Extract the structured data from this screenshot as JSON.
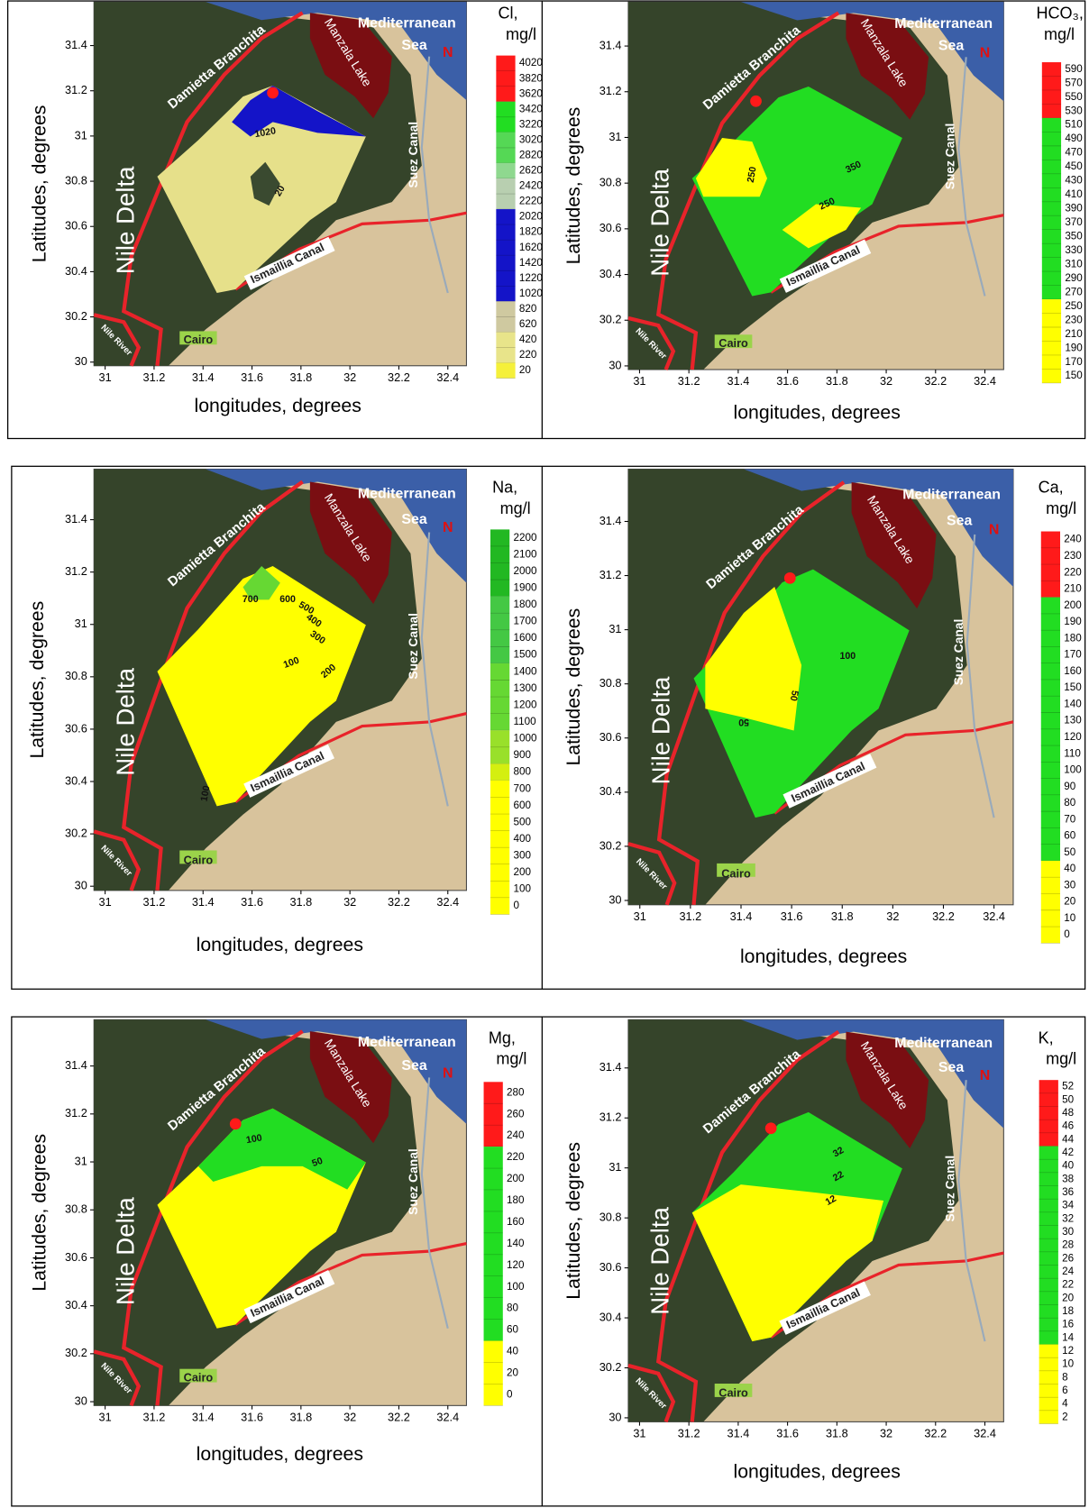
{
  "panels": [
    {
      "title": [
        "Cl,",
        "mg/l"
      ],
      "x_label": "longitudes, degrees",
      "y_label": "Latitudes, degrees",
      "xticks": [
        "31",
        "31.2",
        "31.4",
        "31.6",
        "31.8",
        "32",
        "32.2",
        "32.4"
      ],
      "yticks": [
        "31.4",
        "31.2",
        "31",
        "30.8",
        "30.6",
        "30.4",
        "30.2",
        "30"
      ],
      "places": [
        "Mediterranean",
        "Sea",
        "Manzala Lake",
        "Damietta Branchita",
        "Nile Delta",
        "Suez Canal",
        "Ismaillia Canal",
        "Cairo",
        "Nile River",
        "N"
      ],
      "contours": [
        "1020",
        "20"
      ],
      "colorbar": [
        {
          "color": "#ff1a1a",
          "labels": [
            "4020",
            "3820",
            "3620"
          ]
        },
        {
          "color": "#22dd22",
          "labels": [
            "3420",
            "3220"
          ]
        },
        {
          "color": "#55d855",
          "labels": [
            "3020",
            "2820"
          ]
        },
        {
          "color": "#8fd88f",
          "labels": [
            "2620"
          ]
        },
        {
          "color": "#b8cfb0",
          "labels": [
            "2420",
            "2220"
          ]
        },
        {
          "color": "#1414c8",
          "labels": [
            "2020",
            "1820",
            "1620",
            "1420",
            "1220",
            "1020"
          ]
        },
        {
          "color": "#cfc9a0",
          "labels": [
            "820",
            "620"
          ]
        },
        {
          "color": "#e8e48a",
          "labels": [
            "420",
            "220"
          ]
        },
        {
          "color": "#f5f03a",
          "labels": [
            "20"
          ]
        }
      ]
    },
    {
      "title": [
        "HCO₃,",
        "mg/l"
      ],
      "x_label": "longitudes, degrees",
      "y_label": "Latitudes, degrees",
      "xticks": [
        "31",
        "31.2",
        "31.4",
        "31.6",
        "31.8",
        "32",
        "32.2",
        "32.4"
      ],
      "yticks": [
        "31.4",
        "31.2",
        "31",
        "30.8",
        "30.6",
        "30.4",
        "30.2",
        "30"
      ],
      "places": [
        "Mediterranean",
        "Sea",
        "Manzala Lake",
        "Damietta Branchita",
        "Nile Delta",
        "Suez Canal",
        "Ismaillia Canal",
        "Cairo",
        "Nile River",
        "N"
      ],
      "contours": [
        "250",
        "350",
        "250"
      ],
      "colorbar": [
        {
          "color": "#ff1a1a",
          "labels": [
            "590",
            "570",
            "550",
            "530"
          ]
        },
        {
          "color": "#22dd22",
          "labels": [
            "510",
            "490",
            "470",
            "450",
            "430",
            "410",
            "390",
            "370",
            "350",
            "330",
            "310",
            "290",
            "270"
          ]
        },
        {
          "color": "#ffff00",
          "labels": [
            "250",
            "230",
            "210",
            "190",
            "170",
            "150"
          ]
        }
      ]
    },
    {
      "title": [
        "Na,",
        "mg/l"
      ],
      "x_label": "longitudes, degrees",
      "y_label": "Latitudes, degrees",
      "xticks": [
        "31",
        "31.2",
        "31.4",
        "31.6",
        "31.8",
        "32",
        "32.2",
        "32.4"
      ],
      "yticks": [
        "31.4",
        "31.2",
        "31",
        "30.8",
        "30.6",
        "30.4",
        "30.2",
        "30"
      ],
      "places": [
        "Mediterranean",
        "Sea",
        "Manzala Lake",
        "Damietta Branchita",
        "Nile Delta",
        "Suez Canal",
        "Ismaillia Canal",
        "Cairo",
        "Nile River",
        "N"
      ],
      "contours": [
        "700",
        "600",
        "500",
        "400",
        "300",
        "200",
        "100",
        "100"
      ],
      "colorbar": [
        {
          "color": "#22b822",
          "labels": [
            "2200",
            "2100",
            "2000",
            "1900"
          ]
        },
        {
          "color": "#44c844",
          "labels": [
            "1800",
            "1700",
            "1600",
            "1500"
          ]
        },
        {
          "color": "#66d833",
          "labels": [
            "1400",
            "1300",
            "1200",
            "1100"
          ]
        },
        {
          "color": "#99e02a",
          "labels": [
            "1000",
            "900"
          ]
        },
        {
          "color": "#d4ef10",
          "labels": [
            "800"
          ]
        },
        {
          "color": "#ffff00",
          "labels": [
            "700",
            "600",
            "500",
            "400",
            "300",
            "200",
            "100",
            "0"
          ]
        }
      ]
    },
    {
      "title": [
        "Ca,",
        "mg/l"
      ],
      "x_label": "longitudes, degrees",
      "y_label": "Latitudes, degrees",
      "xticks": [
        "31",
        "31.2",
        "31.4",
        "31.6",
        "31.8",
        "32",
        "32.2",
        "32.4"
      ],
      "yticks": [
        "31.4",
        "31.2",
        "31",
        "30.8",
        "30.6",
        "30.4",
        "30.2",
        "30"
      ],
      "places": [
        "Mediterranean",
        "Sea",
        "Manzala Lake",
        "Damietta Branchita",
        "Nile Delta",
        "Suez Canal",
        "Ismaillia Canal",
        "Cairo",
        "Nile River",
        "N"
      ],
      "contours": [
        "100",
        "50",
        "50"
      ],
      "colorbar": [
        {
          "color": "#ff1a1a",
          "labels": [
            "240",
            "230",
            "220",
            "210"
          ]
        },
        {
          "color": "#22dd22",
          "labels": [
            "200",
            "190",
            "180",
            "170",
            "160",
            "150",
            "140",
            "130",
            "120",
            "110",
            "100",
            "90",
            "80",
            "70",
            "60",
            "50"
          ]
        },
        {
          "color": "#ffff00",
          "labels": [
            "40",
            "30",
            "20",
            "10",
            "0"
          ]
        }
      ]
    },
    {
      "title": [
        "Mg,",
        "mg/l"
      ],
      "x_label": "longitudes, degrees",
      "y_label": "Latitudes, degrees",
      "xticks": [
        "31",
        "31.2",
        "31.4",
        "31.6",
        "31.8",
        "32",
        "32.2",
        "32.4"
      ],
      "yticks": [
        "31.4",
        "31.2",
        "31",
        "30.8",
        "30.6",
        "30.4",
        "30.2",
        "30"
      ],
      "places": [
        "Mediterranean",
        "Sea",
        "Manzala Lake",
        "Damietta Branchita",
        "Nile Delta",
        "Suez Canal",
        "Ismaillia Canal",
        "Cairo",
        "Nile River",
        "N"
      ],
      "contours": [
        "100",
        "50"
      ],
      "colorbar": [
        {
          "color": "#ff1a1a",
          "labels": [
            "280",
            "260",
            "240"
          ]
        },
        {
          "color": "#22dd22",
          "labels": [
            "220",
            "200",
            "180",
            "160",
            "140",
            "120",
            "100",
            "80",
            "60"
          ]
        },
        {
          "color": "#ffff00",
          "labels": [
            "40",
            "20",
            "0"
          ]
        }
      ]
    },
    {
      "title": [
        "K,",
        "mg/l"
      ],
      "x_label": "longitudes, degrees",
      "y_label": "Latitudes, degrees",
      "xticks": [
        "31",
        "31.2",
        "31.4",
        "31.6",
        "31.8",
        "32",
        "32.2",
        "32.4"
      ],
      "yticks": [
        "31.4",
        "31.2",
        "31",
        "30.8",
        "30.6",
        "30.4",
        "30.2",
        "30"
      ],
      "places": [
        "Mediterranean",
        "Sea",
        "Manzala Lake",
        "Damietta Branchita",
        "Nile Delta",
        "Suez Canal",
        "Ismaillia Canal",
        "Cairo",
        "Nile River",
        "N"
      ],
      "contours": [
        "32",
        "22",
        "12"
      ],
      "colorbar": [
        {
          "color": "#ff1a1a",
          "labels": [
            "52",
            "50",
            "48",
            "46",
            "44"
          ]
        },
        {
          "color": "#22dd22",
          "labels": [
            "42",
            "40",
            "38",
            "36",
            "34",
            "32",
            "30",
            "28",
            "26",
            "24",
            "22",
            "20",
            "18",
            "16",
            "14"
          ]
        },
        {
          "color": "#ffff00",
          "labels": [
            "12",
            "10",
            "8",
            "6",
            "4",
            "2"
          ]
        }
      ]
    }
  ]
}
